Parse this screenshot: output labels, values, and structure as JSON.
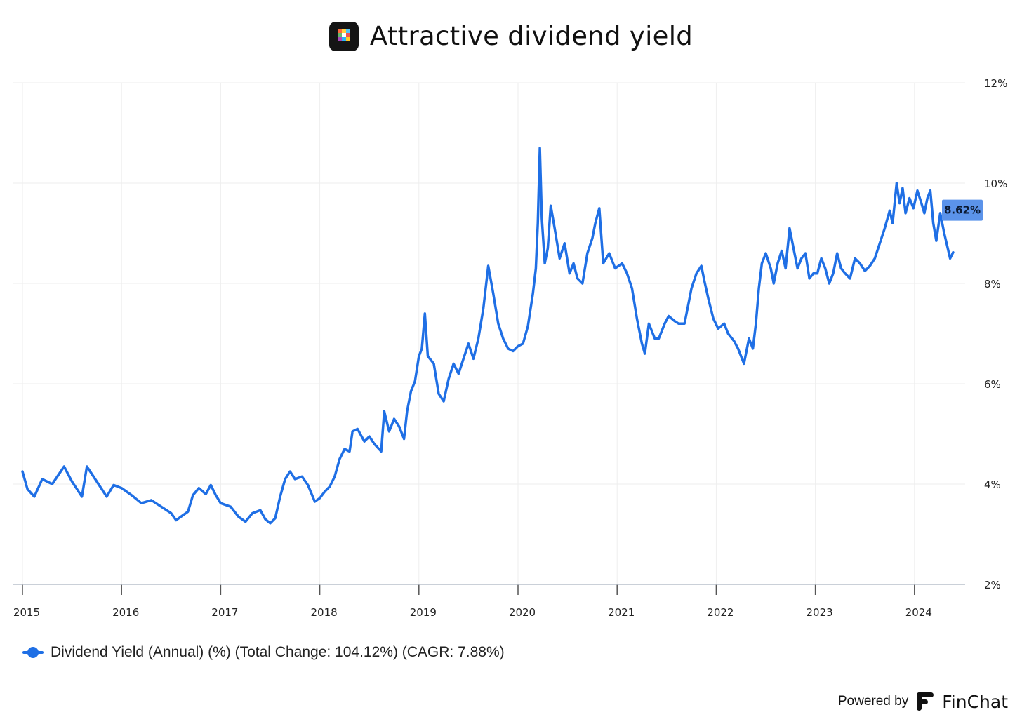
{
  "header": {
    "title": "Attractive dividend yield",
    "icon": "finchat-app-icon"
  },
  "chart_data": {
    "type": "line",
    "title": "Attractive dividend yield",
    "xlabel": "",
    "ylabel": "",
    "x_ticks": [
      "2015",
      "2016",
      "2017",
      "2018",
      "2019",
      "2020",
      "2021",
      "2022",
      "2023",
      "2024"
    ],
    "y_ticks": [
      "2%",
      "4%",
      "6%",
      "8%",
      "10%",
      "12%"
    ],
    "xlim": [
      2015.0,
      2024.5
    ],
    "ylim": [
      2,
      12
    ],
    "y_axis_side": "right",
    "grid": true,
    "legend_position": "bottom-left",
    "last_value_label": "8.62%",
    "series": [
      {
        "name": "Dividend Yield (Annual) (%) (Total Change: 104.12%) (CAGR: 7.88%)",
        "color": "#1f6fe5",
        "points": [
          [
            2015.0,
            4.25
          ],
          [
            2015.05,
            3.9
          ],
          [
            2015.12,
            3.75
          ],
          [
            2015.2,
            4.1
          ],
          [
            2015.3,
            4.0
          ],
          [
            2015.42,
            4.35
          ],
          [
            2015.5,
            4.05
          ],
          [
            2015.6,
            3.75
          ],
          [
            2015.65,
            4.35
          ],
          [
            2015.75,
            4.05
          ],
          [
            2015.85,
            3.75
          ],
          [
            2015.92,
            3.98
          ],
          [
            2016.0,
            3.92
          ],
          [
            2016.1,
            3.78
          ],
          [
            2016.2,
            3.62
          ],
          [
            2016.3,
            3.68
          ],
          [
            2016.4,
            3.55
          ],
          [
            2016.5,
            3.42
          ],
          [
            2016.55,
            3.28
          ],
          [
            2016.62,
            3.38
          ],
          [
            2016.67,
            3.45
          ],
          [
            2016.72,
            3.78
          ],
          [
            2016.78,
            3.92
          ],
          [
            2016.85,
            3.8
          ],
          [
            2016.9,
            3.98
          ],
          [
            2016.95,
            3.78
          ],
          [
            2017.0,
            3.62
          ],
          [
            2017.1,
            3.55
          ],
          [
            2017.18,
            3.35
          ],
          [
            2017.25,
            3.25
          ],
          [
            2017.32,
            3.42
          ],
          [
            2017.4,
            3.48
          ],
          [
            2017.45,
            3.3
          ],
          [
            2017.5,
            3.22
          ],
          [
            2017.55,
            3.32
          ],
          [
            2017.6,
            3.75
          ],
          [
            2017.65,
            4.1
          ],
          [
            2017.7,
            4.25
          ],
          [
            2017.75,
            4.1
          ],
          [
            2017.82,
            4.15
          ],
          [
            2017.88,
            3.98
          ],
          [
            2017.95,
            3.65
          ],
          [
            2018.0,
            3.72
          ],
          [
            2018.05,
            3.85
          ],
          [
            2018.1,
            3.95
          ],
          [
            2018.15,
            4.15
          ],
          [
            2018.2,
            4.5
          ],
          [
            2018.25,
            4.7
          ],
          [
            2018.3,
            4.65
          ],
          [
            2018.33,
            5.05
          ],
          [
            2018.38,
            5.1
          ],
          [
            2018.45,
            4.85
          ],
          [
            2018.5,
            4.95
          ],
          [
            2018.55,
            4.8
          ],
          [
            2018.62,
            4.65
          ],
          [
            2018.65,
            5.45
          ],
          [
            2018.7,
            5.05
          ],
          [
            2018.75,
            5.3
          ],
          [
            2018.8,
            5.15
          ],
          [
            2018.85,
            4.9
          ],
          [
            2018.88,
            5.45
          ],
          [
            2018.92,
            5.85
          ],
          [
            2018.96,
            6.05
          ],
          [
            2019.0,
            6.55
          ],
          [
            2019.03,
            6.7
          ],
          [
            2019.06,
            7.4
          ],
          [
            2019.09,
            6.55
          ],
          [
            2019.15,
            6.4
          ],
          [
            2019.2,
            5.8
          ],
          [
            2019.25,
            5.65
          ],
          [
            2019.3,
            6.1
          ],
          [
            2019.35,
            6.4
          ],
          [
            2019.4,
            6.2
          ],
          [
            2019.45,
            6.5
          ],
          [
            2019.5,
            6.8
          ],
          [
            2019.55,
            6.5
          ],
          [
            2019.6,
            6.9
          ],
          [
            2019.65,
            7.5
          ],
          [
            2019.7,
            8.35
          ],
          [
            2019.75,
            7.8
          ],
          [
            2019.8,
            7.2
          ],
          [
            2019.85,
            6.9
          ],
          [
            2019.9,
            6.7
          ],
          [
            2019.95,
            6.65
          ],
          [
            2020.0,
            6.75
          ],
          [
            2020.05,
            6.8
          ],
          [
            2020.1,
            7.15
          ],
          [
            2020.15,
            7.8
          ],
          [
            2020.18,
            8.3
          ],
          [
            2020.2,
            9.2
          ],
          [
            2020.22,
            10.7
          ],
          [
            2020.24,
            9.3
          ],
          [
            2020.27,
            8.4
          ],
          [
            2020.3,
            8.7
          ],
          [
            2020.33,
            9.55
          ],
          [
            2020.37,
            9.1
          ],
          [
            2020.42,
            8.5
          ],
          [
            2020.47,
            8.8
          ],
          [
            2020.52,
            8.2
          ],
          [
            2020.56,
            8.4
          ],
          [
            2020.6,
            8.1
          ],
          [
            2020.65,
            8.0
          ],
          [
            2020.7,
            8.6
          ],
          [
            2020.75,
            8.9
          ],
          [
            2020.78,
            9.2
          ],
          [
            2020.82,
            9.5
          ],
          [
            2020.86,
            8.4
          ],
          [
            2020.92,
            8.6
          ],
          [
            2020.98,
            8.3
          ],
          [
            2021.05,
            8.4
          ],
          [
            2021.1,
            8.2
          ],
          [
            2021.15,
            7.9
          ],
          [
            2021.2,
            7.3
          ],
          [
            2021.25,
            6.8
          ],
          [
            2021.28,
            6.6
          ],
          [
            2021.32,
            7.2
          ],
          [
            2021.38,
            6.9
          ],
          [
            2021.42,
            6.9
          ],
          [
            2021.48,
            7.2
          ],
          [
            2021.52,
            7.35
          ],
          [
            2021.58,
            7.25
          ],
          [
            2021.62,
            7.2
          ],
          [
            2021.68,
            7.2
          ],
          [
            2021.72,
            7.6
          ],
          [
            2021.75,
            7.9
          ],
          [
            2021.8,
            8.2
          ],
          [
            2021.85,
            8.35
          ],
          [
            2021.88,
            8.05
          ],
          [
            2021.92,
            7.7
          ],
          [
            2021.97,
            7.3
          ],
          [
            2022.02,
            7.1
          ],
          [
            2022.08,
            7.2
          ],
          [
            2022.12,
            7.0
          ],
          [
            2022.18,
            6.85
          ],
          [
            2022.22,
            6.7
          ],
          [
            2022.28,
            6.4
          ],
          [
            2022.33,
            6.9
          ],
          [
            2022.37,
            6.7
          ],
          [
            2022.4,
            7.2
          ],
          [
            2022.43,
            7.9
          ],
          [
            2022.46,
            8.4
          ],
          [
            2022.5,
            8.6
          ],
          [
            2022.55,
            8.3
          ],
          [
            2022.58,
            8.0
          ],
          [
            2022.62,
            8.4
          ],
          [
            2022.66,
            8.65
          ],
          [
            2022.7,
            8.3
          ],
          [
            2022.74,
            9.1
          ],
          [
            2022.78,
            8.7
          ],
          [
            2022.82,
            8.3
          ],
          [
            2022.86,
            8.5
          ],
          [
            2022.9,
            8.6
          ],
          [
            2022.94,
            8.1
          ],
          [
            2022.98,
            8.2
          ],
          [
            2023.02,
            8.2
          ],
          [
            2023.06,
            8.5
          ],
          [
            2023.1,
            8.3
          ],
          [
            2023.14,
            8.0
          ],
          [
            2023.18,
            8.2
          ],
          [
            2023.22,
            8.6
          ],
          [
            2023.26,
            8.3
          ],
          [
            2023.3,
            8.2
          ],
          [
            2023.35,
            8.1
          ],
          [
            2023.4,
            8.5
          ],
          [
            2023.45,
            8.4
          ],
          [
            2023.5,
            8.25
          ],
          [
            2023.55,
            8.35
          ],
          [
            2023.6,
            8.5
          ],
          [
            2023.65,
            8.8
          ],
          [
            2023.7,
            9.1
          ],
          [
            2023.75,
            9.45
          ],
          [
            2023.78,
            9.2
          ],
          [
            2023.82,
            10.0
          ],
          [
            2023.85,
            9.6
          ],
          [
            2023.88,
            9.9
          ],
          [
            2023.91,
            9.4
          ],
          [
            2023.95,
            9.7
          ],
          [
            2023.99,
            9.5
          ],
          [
            2024.03,
            9.85
          ],
          [
            2024.07,
            9.6
          ],
          [
            2024.1,
            9.4
          ],
          [
            2024.13,
            9.7
          ],
          [
            2024.16,
            9.85
          ],
          [
            2024.19,
            9.2
          ],
          [
            2024.22,
            8.85
          ],
          [
            2024.26,
            9.4
          ],
          [
            2024.3,
            9.0
          ],
          [
            2024.33,
            8.75
          ],
          [
            2024.36,
            8.5
          ],
          [
            2024.39,
            8.62
          ]
        ]
      }
    ]
  },
  "legend": {
    "label": "Dividend Yield (Annual) (%) (Total Change: 104.12%) (CAGR: 7.88%)"
  },
  "footer": {
    "powered_by": "Powered by",
    "brand": "FinChat",
    "brand_icon": "finchat-logo-icon"
  }
}
